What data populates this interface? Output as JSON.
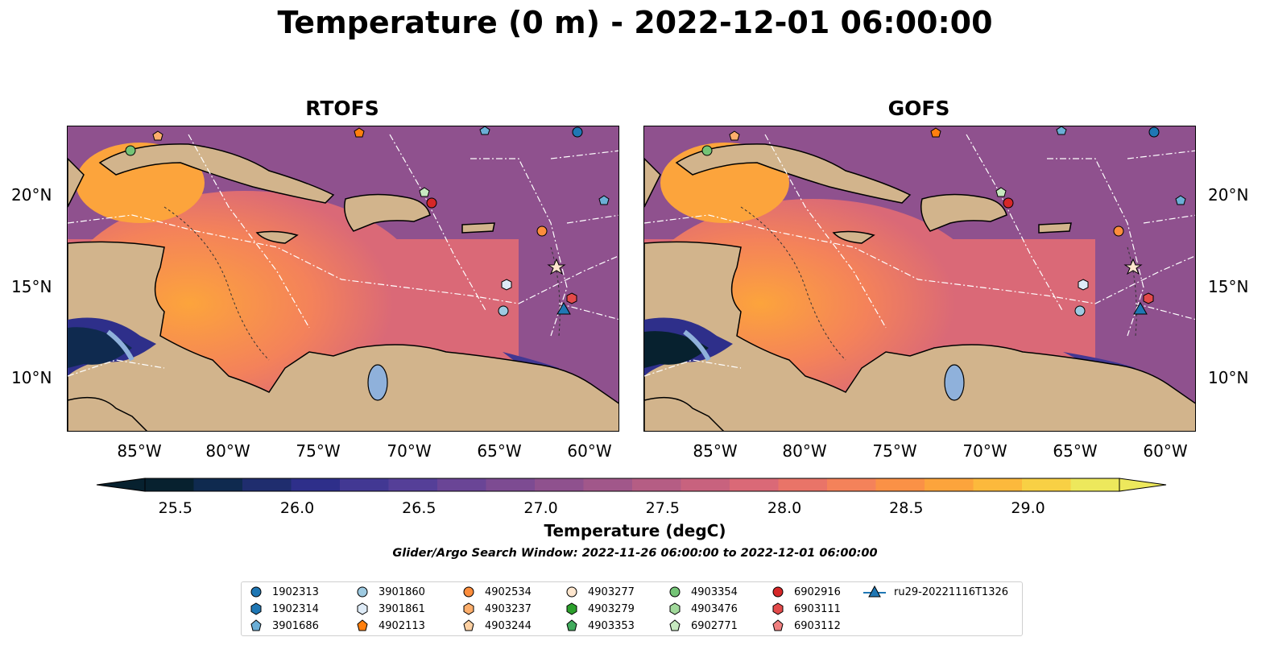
{
  "title": "Temperature (0 m) - 2022-12-01 06:00:00",
  "panels": [
    {
      "name": "RTOFS"
    },
    {
      "name": "GOFS"
    }
  ],
  "axes": {
    "x_ticks": [
      "85°W",
      "80°W",
      "75°W",
      "70°W",
      "65°W",
      "60°W"
    ],
    "y_ticks": [
      "20°N",
      "15°N",
      "10°N"
    ]
  },
  "colorbar": {
    "label": "Temperature (degC)",
    "ticks": [
      "25.5",
      "26.0",
      "26.5",
      "27.0",
      "27.5",
      "28.0",
      "28.5",
      "29.0"
    ],
    "colors": [
      "#07212f",
      "#0f2a4f",
      "#1f2d6e",
      "#2e2f8a",
      "#423893",
      "#553f98",
      "#6a4596",
      "#7d4b92",
      "#8f518e",
      "#a1578a",
      "#b55d84",
      "#c8627e",
      "#da6977",
      "#e97468",
      "#f4825a",
      "#fa9146",
      "#fca43c",
      "#fcb93c",
      "#f8d044",
      "#ede85c"
    ],
    "range": [
      25.375,
      29.375
    ]
  },
  "search_window": "Glider/Argo Search Window: 2022-11-26 06:00:00 to 2022-12-01 06:00:00",
  "legend": [
    {
      "label": "1902313",
      "marker": "circle",
      "color": "#1f77b4"
    },
    {
      "label": "1902314",
      "marker": "hexagon",
      "color": "#1f77b4"
    },
    {
      "label": "3901686",
      "marker": "pentagon",
      "color": "#6baed6"
    },
    {
      "label": "3901860",
      "marker": "circle",
      "color": "#9ecae1"
    },
    {
      "label": "3901861",
      "marker": "hexagon",
      "color": "#deebf7"
    },
    {
      "label": "4902113",
      "marker": "pentagon",
      "color": "#ff7f0e"
    },
    {
      "label": "4902534",
      "marker": "circle",
      "color": "#fd8d3c"
    },
    {
      "label": "4903237",
      "marker": "hexagon",
      "color": "#fdae6b"
    },
    {
      "label": "4903244",
      "marker": "pentagon",
      "color": "#fdd0a2"
    },
    {
      "label": "4903277",
      "marker": "circle",
      "color": "#fee6ce"
    },
    {
      "label": "4903279",
      "marker": "hexagon",
      "color": "#2ca02c"
    },
    {
      "label": "4903353",
      "marker": "pentagon",
      "color": "#41ab5d"
    },
    {
      "label": "4903354",
      "marker": "circle",
      "color": "#74c476"
    },
    {
      "label": "4903476",
      "marker": "hexagon",
      "color": "#a1d99b"
    },
    {
      "label": "6902771",
      "marker": "pentagon",
      "color": "#c7e9c0"
    },
    {
      "label": "6902916",
      "marker": "circle",
      "color": "#d62728"
    },
    {
      "label": "6903111",
      "marker": "hexagon",
      "color": "#e34a4a"
    },
    {
      "label": "6903112",
      "marker": "pentagon",
      "color": "#f08080"
    },
    {
      "label": "ru29-20221116T1326",
      "marker": "triangle",
      "color": "#1f77b4"
    }
  ],
  "colors": {
    "land": "#d2b48c",
    "lake": "#8fb1db",
    "ocean_bg": "#c8627e"
  }
}
